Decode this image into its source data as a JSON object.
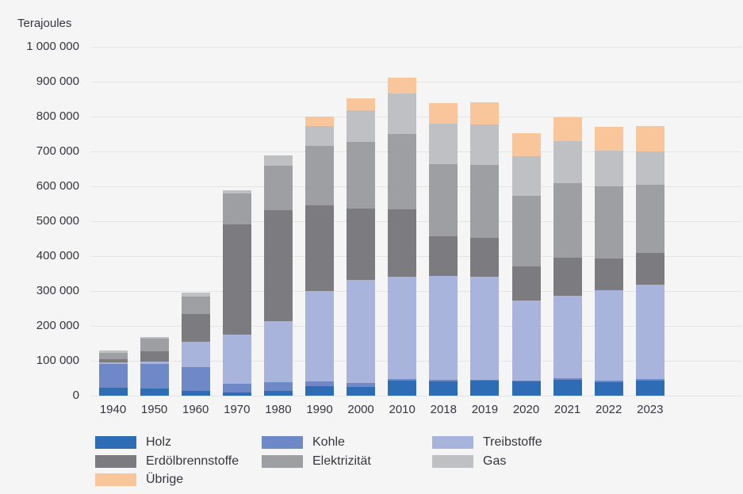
{
  "page": {
    "background": "#f5f5f6",
    "grid_color": "#e4e4e7",
    "text_color": "#35353e"
  },
  "chart_data": {
    "type": "bar",
    "stacked": true,
    "unit_label": "Terajoules",
    "grid": true,
    "legend_position": "bottom",
    "ylim": [
      0,
      1000000
    ],
    "y_ticks": [
      {
        "value": 1000000,
        "label": "1 000 000"
      },
      {
        "value": 900000,
        "label": "900 000"
      },
      {
        "value": 800000,
        "label": "800 000"
      },
      {
        "value": 700000,
        "label": "700 000"
      },
      {
        "value": 600000,
        "label": "600 000"
      },
      {
        "value": 500000,
        "label": "500 000"
      },
      {
        "value": 400000,
        "label": "400 000"
      },
      {
        "value": 300000,
        "label": "300 000"
      },
      {
        "value": 200000,
        "label": "200 000"
      },
      {
        "value": 100000,
        "label": "100 000"
      },
      {
        "value": 0,
        "label": "0"
      }
    ],
    "categories": [
      "1940",
      "1950",
      "1960",
      "1970",
      "1980",
      "1990",
      "2000",
      "2010",
      "2018",
      "2019",
      "2020",
      "2021",
      "2022",
      "2023"
    ],
    "series": [
      {
        "name": "Holz",
        "color": "#2e6db5",
        "values": [
          22000,
          21000,
          13000,
          8000,
          14000,
          27000,
          26000,
          42000,
          41000,
          42000,
          40000,
          46000,
          38000,
          42000
        ]
      },
      {
        "name": "Kohle",
        "color": "#6f89c8",
        "values": [
          68000,
          69000,
          68000,
          27000,
          25000,
          14000,
          10000,
          6000,
          5000,
          4000,
          4000,
          5000,
          5000,
          5000
        ]
      },
      {
        "name": "Treibstoffe",
        "color": "#a8b4db",
        "values": [
          5000,
          8000,
          74000,
          139000,
          175000,
          258000,
          296000,
          294000,
          296000,
          296000,
          229000,
          236000,
          260000,
          272000
        ]
      },
      {
        "name": "Erdölbrennstoffe",
        "color": "#7c7c80",
        "values": [
          9000,
          29000,
          79000,
          318000,
          317000,
          247000,
          205000,
          192000,
          115000,
          110000,
          97000,
          108000,
          91000,
          89000
        ]
      },
      {
        "name": "Elektrizität",
        "color": "#9e9fa3",
        "values": [
          18000,
          37000,
          50000,
          87000,
          128000,
          169000,
          190000,
          215000,
          206000,
          210000,
          203000,
          213000,
          206000,
          197000
        ]
      },
      {
        "name": "Gas",
        "color": "#bec0c4",
        "values": [
          8000,
          5000,
          12000,
          9000,
          30000,
          57000,
          91000,
          117000,
          116000,
          115000,
          114000,
          121000,
          102000,
          96000
        ]
      },
      {
        "name": "Übrige",
        "color": "#f9c69c",
        "values": [
          0,
          0,
          0,
          0,
          0,
          27000,
          34000,
          45000,
          60000,
          64000,
          66000,
          68000,
          68000,
          72000
        ]
      }
    ]
  }
}
